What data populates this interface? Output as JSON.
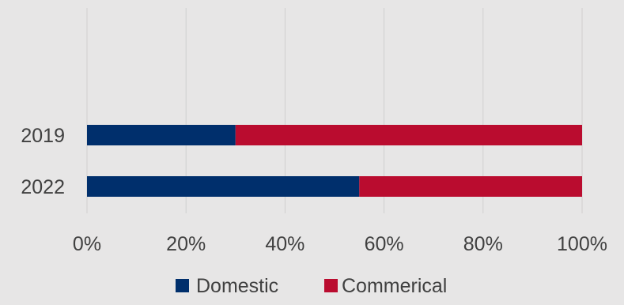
{
  "chart_data": {
    "type": "bar",
    "orientation": "horizontal",
    "stacked": "percent",
    "categories": [
      "2019",
      "2022"
    ],
    "series": [
      {
        "name": "Domestic",
        "values": [
          30,
          55
        ],
        "color": "#002f6c"
      },
      {
        "name": "Commerical",
        "values": [
          70,
          45
        ],
        "color": "#ba0c2f"
      }
    ],
    "xlim": [
      0,
      100
    ],
    "x_ticks": [
      0,
      20,
      40,
      60,
      80,
      100
    ],
    "x_tick_labels": [
      "0%",
      "20%",
      "40%",
      "60%",
      "80%",
      "100%"
    ],
    "title": "",
    "xlabel": "",
    "ylabel": "",
    "grid": "vertical",
    "legend": "bottom",
    "background": "#e7e6e6"
  }
}
